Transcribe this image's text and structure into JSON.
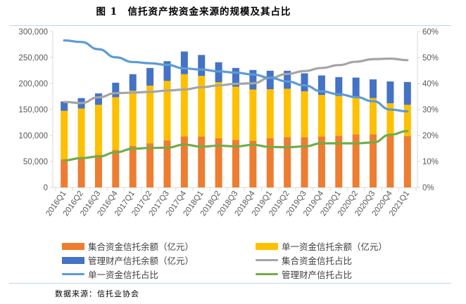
{
  "figure_title": "图 1　信托资产按资金来源的规模及其占比",
  "source": "数据来源：信托业协会",
  "chart_data": {
    "type": "bar",
    "stacked": true,
    "title": "图 1　信托资产按资金来源的规模及其占比",
    "categories": [
      "2016Q1",
      "2016Q2",
      "2016Q3",
      "2016Q4",
      "2017Q1",
      "2017Q2",
      "2017Q3",
      "2017Q4",
      "2018Q1",
      "2018Q2",
      "2018Q3",
      "2018Q4",
      "2019Q1",
      "2019Q2",
      "2019Q3",
      "2019Q4",
      "2020Q1",
      "2020Q2",
      "2020Q3",
      "2020Q4",
      "2021Q1"
    ],
    "y_left": {
      "range": [
        0,
        300000
      ],
      "ticks": [
        "0",
        "50,000",
        "100,000",
        "150,000",
        "200,000",
        "250,000",
        "300,000"
      ]
    },
    "y_right": {
      "range": [
        0,
        60
      ],
      "ticks": [
        "0%",
        "10%",
        "20%",
        "30%",
        "40%",
        "50%",
        "60%"
      ]
    },
    "grid": false,
    "legend_placement": "bottom",
    "bar_series": [
      {
        "name": "集合资金信托余额（亿元）",
        "color": "#ed7d31",
        "values": [
          54000,
          56000,
          63000,
          72600,
          80000,
          85000,
          90700,
          98000,
          98000,
          94700,
          91600,
          90000,
          94700,
          97000,
          97000,
          98000,
          99700,
          102000,
          102000,
          99700,
          98800
        ]
      },
      {
        "name": "单一资金信托余额（亿元）",
        "color": "#ffc000",
        "values": [
          93500,
          96000,
          96000,
          101100,
          106000,
          111000,
          114300,
          120000,
          116700,
          107800,
          102400,
          98500,
          94300,
          93000,
          88000,
          80000,
          76300,
          73000,
          70000,
          62300,
          60200
        ]
      },
      {
        "name": "管理财产信托余额（亿元）",
        "color": "#4472c4",
        "values": [
          18000,
          20000,
          22000,
          27900,
          32000,
          34000,
          38000,
          43600,
          40300,
          38500,
          36000,
          37500,
          35600,
          34600,
          34700,
          37600,
          36400,
          36500,
          36000,
          42000,
          44000
        ]
      }
    ],
    "line_series": [
      {
        "name": "集合资金信托占比",
        "color": "#a5a5a5",
        "axis": "right",
        "values": [
          32.9,
          32.5,
          34.7,
          36.3,
          36.5,
          36.8,
          37.3,
          37.7,
          38.6,
          39.3,
          39.9,
          40.1,
          42.2,
          43.7,
          44.8,
          46.0,
          47.1,
          48.4,
          49.4,
          49.6,
          49.0
        ]
      },
      {
        "name": "单一资金信托占比",
        "color": "#5b9bd5",
        "axis": "right",
        "values": [
          56.6,
          56.0,
          53.2,
          50.1,
          48.3,
          47.8,
          47.2,
          45.8,
          45.4,
          44.7,
          44.2,
          43.5,
          42.2,
          40.8,
          39.3,
          37.0,
          35.9,
          34.8,
          33.2,
          30.0,
          29.3
        ]
      },
      {
        "name": "管理财产信托占比",
        "color": "#70ad47",
        "axis": "right",
        "values": [
          10.4,
          11.3,
          11.9,
          13.5,
          14.9,
          15.2,
          15.3,
          16.5,
          15.7,
          16.1,
          15.8,
          16.4,
          15.6,
          15.5,
          15.8,
          17.0,
          17.0,
          17.0,
          17.3,
          20.3,
          21.7
        ]
      }
    ]
  },
  "legend": [
    {
      "label": "集合资金信托余额（亿元）",
      "kind": "bar",
      "color": "#ed7d31"
    },
    {
      "label": "单一资金信托余额（亿元）",
      "kind": "bar",
      "color": "#ffc000"
    },
    {
      "label": "管理财产信托余额（亿元）",
      "kind": "bar",
      "color": "#4472c4"
    },
    {
      "label": "集合资金信托占比",
      "kind": "line",
      "color": "#a5a5a5"
    },
    {
      "label": "单一资金信托占比",
      "kind": "line",
      "color": "#5b9bd5"
    },
    {
      "label": "管理财产信托占比",
      "kind": "line",
      "color": "#70ad47"
    }
  ]
}
